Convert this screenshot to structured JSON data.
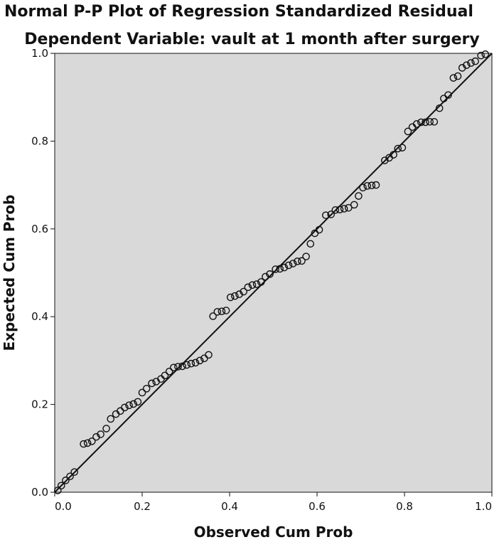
{
  "chart_data": {
    "type": "scatter",
    "title": "Normal P-P Plot of Regression Standardized Residual",
    "subtitle": "Dependent Variable: vault at 1 month after surgery",
    "xlabel": "Observed Cum Prob",
    "ylabel": "Expected Cum Prob",
    "xlim": [
      0,
      1
    ],
    "ylim": [
      0,
      1
    ],
    "xticks": [
      "0.0",
      "0.2",
      "0.4",
      "0.6",
      "0.8",
      "1.0"
    ],
    "yticks": [
      "0.0",
      "0.2",
      "0.4",
      "0.6",
      "0.8",
      "1.0"
    ],
    "grid": false,
    "reference_line": {
      "from": [
        0,
        0
      ],
      "to": [
        1,
        1
      ]
    },
    "colors": {
      "plot_background": "#d9d9d9",
      "marker": "#111111",
      "line": "#111111"
    },
    "points": [
      [
        0.007,
        0.004
      ],
      [
        0.015,
        0.015
      ],
      [
        0.025,
        0.027
      ],
      [
        0.035,
        0.036
      ],
      [
        0.045,
        0.046
      ],
      [
        0.066,
        0.11
      ],
      [
        0.075,
        0.112
      ],
      [
        0.085,
        0.116
      ],
      [
        0.095,
        0.126
      ],
      [
        0.105,
        0.132
      ],
      [
        0.118,
        0.145
      ],
      [
        0.128,
        0.167
      ],
      [
        0.14,
        0.178
      ],
      [
        0.15,
        0.185
      ],
      [
        0.16,
        0.193
      ],
      [
        0.17,
        0.198
      ],
      [
        0.18,
        0.201
      ],
      [
        0.19,
        0.206
      ],
      [
        0.2,
        0.227
      ],
      [
        0.21,
        0.236
      ],
      [
        0.222,
        0.248
      ],
      [
        0.232,
        0.252
      ],
      [
        0.243,
        0.258
      ],
      [
        0.252,
        0.266
      ],
      [
        0.262,
        0.275
      ],
      [
        0.272,
        0.284
      ],
      [
        0.282,
        0.286
      ],
      [
        0.292,
        0.287
      ],
      [
        0.302,
        0.29
      ],
      [
        0.312,
        0.293
      ],
      [
        0.322,
        0.295
      ],
      [
        0.332,
        0.3
      ],
      [
        0.342,
        0.305
      ],
      [
        0.352,
        0.313
      ],
      [
        0.362,
        0.401
      ],
      [
        0.372,
        0.411
      ],
      [
        0.382,
        0.412
      ],
      [
        0.392,
        0.414
      ],
      [
        0.402,
        0.444
      ],
      [
        0.412,
        0.447
      ],
      [
        0.422,
        0.451
      ],
      [
        0.432,
        0.457
      ],
      [
        0.442,
        0.467
      ],
      [
        0.452,
        0.472
      ],
      [
        0.462,
        0.474
      ],
      [
        0.472,
        0.479
      ],
      [
        0.482,
        0.491
      ],
      [
        0.492,
        0.497
      ],
      [
        0.505,
        0.508
      ],
      [
        0.515,
        0.509
      ],
      [
        0.525,
        0.512
      ],
      [
        0.535,
        0.517
      ],
      [
        0.545,
        0.521
      ],
      [
        0.555,
        0.526
      ],
      [
        0.565,
        0.527
      ],
      [
        0.575,
        0.537
      ],
      [
        0.585,
        0.566
      ],
      [
        0.595,
        0.59
      ],
      [
        0.605,
        0.598
      ],
      [
        0.62,
        0.631
      ],
      [
        0.632,
        0.633
      ],
      [
        0.642,
        0.643
      ],
      [
        0.652,
        0.644
      ],
      [
        0.662,
        0.646
      ],
      [
        0.672,
        0.648
      ],
      [
        0.685,
        0.655
      ],
      [
        0.695,
        0.675
      ],
      [
        0.705,
        0.694
      ],
      [
        0.715,
        0.698
      ],
      [
        0.725,
        0.699
      ],
      [
        0.735,
        0.7
      ],
      [
        0.755,
        0.756
      ],
      [
        0.765,
        0.762
      ],
      [
        0.775,
        0.769
      ],
      [
        0.785,
        0.783
      ],
      [
        0.795,
        0.785
      ],
      [
        0.808,
        0.822
      ],
      [
        0.818,
        0.832
      ],
      [
        0.828,
        0.839
      ],
      [
        0.838,
        0.843
      ],
      [
        0.848,
        0.843
      ],
      [
        0.858,
        0.844
      ],
      [
        0.868,
        0.844
      ],
      [
        0.88,
        0.875
      ],
      [
        0.89,
        0.897
      ],
      [
        0.9,
        0.905
      ],
      [
        0.912,
        0.944
      ],
      [
        0.922,
        0.948
      ],
      [
        0.932,
        0.967
      ],
      [
        0.942,
        0.973
      ],
      [
        0.952,
        0.978
      ],
      [
        0.962,
        0.982
      ],
      [
        0.975,
        0.995
      ],
      [
        0.985,
        0.998
      ]
    ]
  }
}
